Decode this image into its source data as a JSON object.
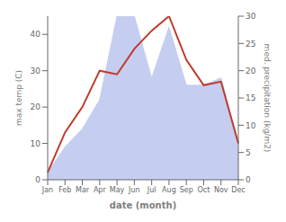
{
  "chart_data": {
    "type": "line",
    "categories": [
      "Jan",
      "Feb",
      "Mar",
      "Apr",
      "May",
      "Jun",
      "Jul",
      "Aug",
      "Sep",
      "Oct",
      "Nov",
      "Dec"
    ],
    "series": [
      {
        "type": "area",
        "color": "#c5cef0",
        "values": [
          2,
          9,
          14,
          22,
          45,
          45,
          28,
          42,
          26,
          26,
          28,
          10
        ]
      },
      {
        "type": "line",
        "color": "#c0392b",
        "values": [
          2,
          13,
          20,
          30,
          29,
          36,
          41,
          45,
          33,
          26,
          27,
          10
        ]
      }
    ],
    "x_label": "date (month)",
    "y_label": "max temp (C)",
    "y2_label": "med. precipitation (kg/m2)",
    "ylim": [
      0,
      45
    ],
    "yticks": [
      0,
      10,
      20,
      30,
      40
    ],
    "y2lim": [
      0,
      30
    ],
    "y2ticks": [
      0,
      5,
      10,
      15,
      20,
      25,
      30
    ],
    "grid": false
  }
}
